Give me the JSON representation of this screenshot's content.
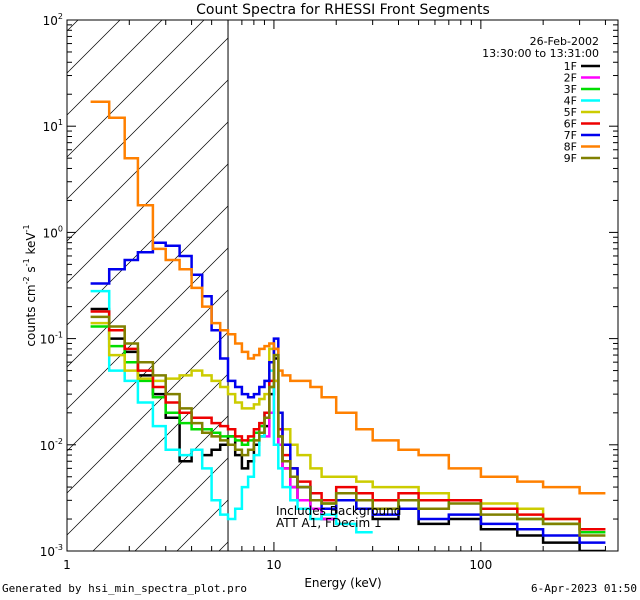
{
  "chart_data": {
    "type": "line",
    "title": "Count Spectra for RHESSI Front Segments",
    "xlabel": "Energy (keV)",
    "ylabel_parts": [
      "counts cm",
      "-2",
      " s",
      "-1",
      " keV",
      "-1"
    ],
    "xscale": "log",
    "yscale": "log",
    "xlim": [
      1,
      460
    ],
    "ylim": [
      0.001,
      100
    ],
    "x_ticks": [
      {
        "v": 1,
        "label": "1"
      },
      {
        "v": 10,
        "label": "10"
      },
      {
        "v": 100,
        "label": "100"
      }
    ],
    "y_ticks": [
      {
        "v": 0.001,
        "base": "10",
        "exp": "-3"
      },
      {
        "v": 0.01,
        "base": "10",
        "exp": "-2"
      },
      {
        "v": 0.1,
        "base": "10",
        "exp": "-1"
      },
      {
        "v": 1,
        "base": "10",
        "exp": "0"
      },
      {
        "v": 10,
        "base": "10",
        "exp": "1"
      },
      {
        "v": 100,
        "base": "10",
        "exp": "2"
      }
    ],
    "excluded_region": {
      "x": [
        1,
        6
      ],
      "description": "hatched low-energy region"
    },
    "date": "26-Feb-2002",
    "time_range": "13:30:00 to 13:31:00",
    "annotation_lines": [
      "Includes Background",
      "ATT A1, FDecim 1"
    ],
    "legend_position": "top-right",
    "series": [
      {
        "name": "1F",
        "color": "#000000",
        "edges": [
          1.3,
          1.6,
          1.9,
          2.2,
          2.6,
          3.0,
          3.5,
          4.0,
          4.5,
          5.0,
          5.5,
          6.0,
          6.5,
          7.0,
          7.5,
          8.0,
          8.5,
          9.0,
          9.5,
          10.0,
          10.5,
          11.0,
          12.0,
          13.0,
          15.0,
          17.0,
          20.0,
          25.0,
          30.0,
          40.0,
          50.0,
          70.0,
          100.0,
          150.0,
          200.0,
          300.0,
          400.0
        ],
        "values": [
          0.19,
          0.1,
          0.075,
          0.045,
          0.03,
          0.018,
          0.007,
          0.009,
          0.008,
          0.009,
          0.01,
          0.012,
          0.008,
          0.006,
          0.007,
          0.01,
          0.012,
          0.015,
          0.03,
          0.065,
          0.01,
          0.006,
          0.004,
          0.003,
          0.0025,
          0.002,
          0.003,
          0.0025,
          0.002,
          0.0025,
          0.0018,
          0.002,
          0.0016,
          0.0014,
          0.0012,
          0.001
        ]
      },
      {
        "name": "2F",
        "color": "#ff00ff",
        "edges": [
          9.0,
          9.5,
          10.0,
          10.5,
          11.0,
          12.0,
          13.0,
          15.0,
          17.0,
          20.0
        ],
        "values": [
          0.012,
          0.02,
          0.04,
          0.01,
          0.006,
          0.004,
          0.003,
          0.0025,
          0.002
        ]
      },
      {
        "name": "3F",
        "color": "#00dd00",
        "edges": [
          1.3,
          1.6,
          1.9,
          2.2,
          2.6,
          3.0,
          3.5,
          4.0,
          4.5,
          5.0,
          5.5,
          6.0,
          6.5,
          7.0,
          7.5,
          8.0,
          8.5,
          9.0,
          9.5,
          10.0,
          10.5,
          11.0,
          12.0,
          13.0,
          15.0,
          17.0,
          20.0,
          25.0,
          30.0,
          40.0,
          50.0,
          70.0,
          100.0,
          150.0,
          200.0,
          300.0,
          400.0
        ],
        "values": [
          0.13,
          0.085,
          0.06,
          0.04,
          0.028,
          0.02,
          0.016,
          0.014,
          0.014,
          0.013,
          0.012,
          0.012,
          0.011,
          0.01,
          0.011,
          0.013,
          0.015,
          0.02,
          0.035,
          0.07,
          0.012,
          0.007,
          0.005,
          0.004,
          0.003,
          0.0028,
          0.0035,
          0.003,
          0.0025,
          0.003,
          0.0025,
          0.003,
          0.0025,
          0.002,
          0.0018,
          0.0015
        ]
      },
      {
        "name": "4F",
        "color": "#00ffff",
        "edges": [
          1.3,
          1.6,
          1.9,
          2.2,
          2.6,
          3.0,
          3.5,
          4.0,
          4.5,
          5.0,
          5.5,
          6.0,
          6.5,
          7.0,
          7.5,
          8.0,
          8.5,
          9.0,
          9.5,
          10.0,
          10.5,
          11.0,
          12.0,
          13.0,
          15.0,
          17.0,
          20.0,
          25.0,
          30.0
        ],
        "values": [
          0.28,
          0.05,
          0.04,
          0.025,
          0.015,
          0.009,
          0.008,
          0.009,
          0.006,
          0.003,
          0.0022,
          0.002,
          0.0025,
          0.004,
          0.005,
          0.008,
          0.012,
          0.02,
          0.05,
          0.01,
          0.006,
          0.004,
          0.003,
          0.0025,
          0.002,
          0.0022,
          0.0018,
          0.0015
        ]
      },
      {
        "name": "5F",
        "color": "#cccc00",
        "edges": [
          1.3,
          1.6,
          1.9,
          2.2,
          2.6,
          3.0,
          3.5,
          4.0,
          4.5,
          5.0,
          5.5,
          6.0,
          6.5,
          7.0,
          7.5,
          8.0,
          8.5,
          9.0,
          9.5,
          10.0,
          10.5,
          11.0,
          12.0,
          13.0,
          15.0,
          17.0,
          20.0,
          25.0,
          30.0,
          40.0,
          50.0,
          70.0,
          100.0,
          150.0,
          200.0,
          300.0,
          400.0
        ],
        "values": [
          0.14,
          0.07,
          0.05,
          0.042,
          0.04,
          0.042,
          0.045,
          0.05,
          0.045,
          0.04,
          0.035,
          0.03,
          0.025,
          0.022,
          0.022,
          0.024,
          0.027,
          0.03,
          0.08,
          0.04,
          0.02,
          0.014,
          0.01,
          0.008,
          0.006,
          0.005,
          0.005,
          0.0045,
          0.004,
          0.004,
          0.0035,
          0.003,
          0.0028,
          0.0025,
          0.002,
          0.0016
        ]
      },
      {
        "name": "6F",
        "color": "#ee0000",
        "edges": [
          1.3,
          1.6,
          1.9,
          2.2,
          2.6,
          3.0,
          3.5,
          4.0,
          4.5,
          5.0,
          5.5,
          6.0,
          6.5,
          7.0,
          7.5,
          8.0,
          8.5,
          9.0,
          9.5,
          10.0,
          10.5,
          11.0,
          12.0,
          13.0,
          15.0,
          17.0,
          20.0,
          25.0,
          30.0,
          40.0,
          50.0,
          70.0,
          100.0,
          150.0,
          200.0,
          300.0,
          400.0
        ],
        "values": [
          0.18,
          0.12,
          0.08,
          0.05,
          0.035,
          0.025,
          0.02,
          0.018,
          0.018,
          0.016,
          0.015,
          0.014,
          0.012,
          0.011,
          0.012,
          0.014,
          0.016,
          0.02,
          0.04,
          0.08,
          0.014,
          0.008,
          0.006,
          0.0045,
          0.0035,
          0.003,
          0.004,
          0.0035,
          0.003,
          0.0035,
          0.003,
          0.003,
          0.0025,
          0.0022,
          0.002,
          0.0016
        ]
      },
      {
        "name": "7F",
        "color": "#0000ee",
        "edges": [
          1.3,
          1.6,
          1.9,
          2.2,
          2.6,
          3.0,
          3.5,
          4.0,
          4.5,
          5.0,
          5.5,
          6.0,
          6.5,
          7.0,
          7.5,
          8.0,
          8.5,
          9.0,
          9.5,
          10.0,
          10.5,
          11.0,
          12.0,
          13.0,
          15.0,
          17.0,
          20.0,
          25.0,
          30.0,
          40.0,
          50.0,
          70.0,
          100.0,
          150.0,
          200.0,
          300.0,
          400.0
        ],
        "values": [
          0.33,
          0.45,
          0.55,
          0.65,
          0.8,
          0.75,
          0.6,
          0.4,
          0.25,
          0.12,
          0.065,
          0.04,
          0.035,
          0.03,
          0.028,
          0.03,
          0.035,
          0.04,
          0.06,
          0.1,
          0.02,
          0.01,
          0.006,
          0.004,
          0.003,
          0.0025,
          0.003,
          0.0025,
          0.0022,
          0.0025,
          0.002,
          0.0022,
          0.0018,
          0.0016,
          0.0014,
          0.0012
        ]
      },
      {
        "name": "8F",
        "color": "#ff8000",
        "edges": [
          1.3,
          1.6,
          1.9,
          2.2,
          2.6,
          3.0,
          3.5,
          4.0,
          4.5,
          5.0,
          5.5,
          6.0,
          6.5,
          7.0,
          7.5,
          8.0,
          8.5,
          9.0,
          9.5,
          10.0,
          10.5,
          11.0,
          12.0,
          13.0,
          15.0,
          17.0,
          20.0,
          25.0,
          30.0,
          40.0,
          50.0,
          70.0,
          100.0,
          150.0,
          200.0,
          300.0,
          400.0
        ],
        "values": [
          17,
          12,
          5,
          1.8,
          0.7,
          0.55,
          0.45,
          0.3,
          0.2,
          0.14,
          0.12,
          0.11,
          0.09,
          0.075,
          0.065,
          0.07,
          0.08,
          0.085,
          0.09,
          0.08,
          0.05,
          0.045,
          0.04,
          0.04,
          0.035,
          0.028,
          0.02,
          0.014,
          0.011,
          0.009,
          0.008,
          0.006,
          0.005,
          0.0045,
          0.004,
          0.0035
        ]
      },
      {
        "name": "9F",
        "color": "#808000",
        "edges": [
          1.3,
          1.6,
          1.9,
          2.2,
          2.6,
          3.0,
          3.5,
          4.0,
          4.5,
          5.0,
          5.5,
          6.0,
          6.5,
          7.0,
          7.5,
          8.0,
          8.5,
          9.0,
          9.5,
          10.0,
          10.5,
          11.0,
          12.0,
          13.0,
          15.0,
          17.0,
          20.0,
          25.0,
          30.0,
          40.0,
          50.0,
          70.0,
          100.0,
          150.0,
          200.0,
          300.0,
          400.0
        ],
        "values": [
          0.16,
          0.13,
          0.09,
          0.06,
          0.045,
          0.03,
          0.022,
          0.016,
          0.013,
          0.012,
          0.011,
          0.01,
          0.009,
          0.008,
          0.009,
          0.011,
          0.013,
          0.018,
          0.035,
          0.07,
          0.012,
          0.007,
          0.005,
          0.004,
          0.003,
          0.0028,
          0.0035,
          0.003,
          0.0025,
          0.003,
          0.0025,
          0.0028,
          0.0022,
          0.002,
          0.0018,
          0.0014
        ]
      }
    ]
  },
  "footer": {
    "generated_by": "Generated by hsi_min_spectra_plot.pro",
    "timestamp": "6-Apr-2023 01:50"
  }
}
